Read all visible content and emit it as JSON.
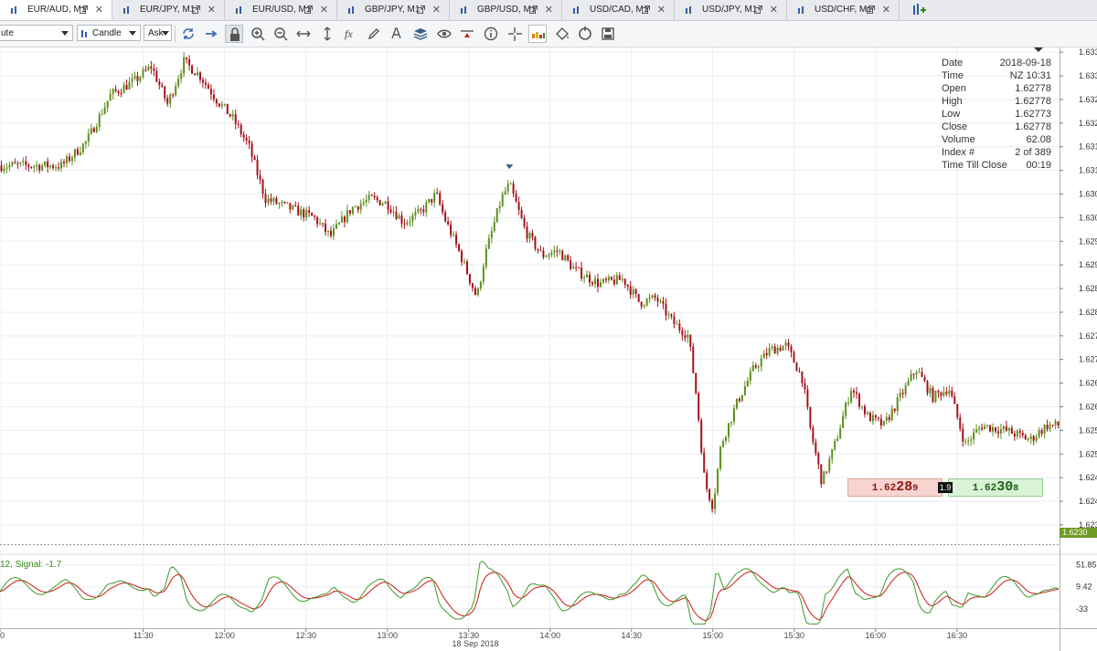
{
  "tabs": [
    {
      "label": "EUR/AUD, M1",
      "active": true
    },
    {
      "label": "EUR/JPY, M1",
      "active": false
    },
    {
      "label": "EUR/USD, M1",
      "active": false
    },
    {
      "label": "GBP/JPY, M1",
      "active": false
    },
    {
      "label": "GBP/USD, M1",
      "active": false
    },
    {
      "label": "USD/CAD, M1",
      "active": false
    },
    {
      "label": "USD/JPY, M1",
      "active": false
    },
    {
      "label": "USD/CHF, M1",
      "active": false
    }
  ],
  "toolbar": {
    "period_value": "ute",
    "chart_type_value": "Candle",
    "price_side_value": "Ask",
    "tools": [
      "refresh-icon",
      "arrow-right-icon",
      "lock-icon",
      "zoom-in-icon",
      "zoom-out-icon",
      "fit-horizontal-icon",
      "fit-vertical-icon",
      "function-icon",
      "pencil-icon",
      "text-icon",
      "layers-icon",
      "eye-icon",
      "alert-icon",
      "info-icon",
      "crosshair-icon",
      "heatmap-icon",
      "paint-bucket-icon",
      "reset-icon",
      "save-icon"
    ]
  },
  "infobox": [
    {
      "label": "Date",
      "value": "2018-09-18"
    },
    {
      "label": "Time",
      "value": "NZ 10:31"
    },
    {
      "label": "Open",
      "value": "1.62778"
    },
    {
      "label": "High",
      "value": "1.62778"
    },
    {
      "label": "Low",
      "value": "1.62773"
    },
    {
      "label": "Close",
      "value": "1.62778"
    },
    {
      "label": "Volume",
      "value": "62.08"
    },
    {
      "label": "Index #",
      "value": "2 of 389"
    },
    {
      "label": "Time Till Close",
      "value": "00:19"
    }
  ],
  "bid_ask": {
    "bid_prefix": "1.62",
    "bid_big": "28",
    "bid_pip": "9",
    "ask_prefix": "1.62",
    "ask_big": "30",
    "ask_pip": "8",
    "spread": "1.9"
  },
  "current_price_tag": "1.6230",
  "oscillator_label": "12, Signal: -1.7",
  "date_label": "18 Sep 2018",
  "colors": {
    "up": "#5d8f1c",
    "down": "#a3121a",
    "macd": "#3f9a2a",
    "signal": "#d01818",
    "grid": "#ebeef2"
  },
  "chart_data": {
    "type": "candlestick",
    "ylim": [
      1.6229,
      1.6336
    ],
    "y_ticks": [
      "1.6335",
      "1.6330",
      "1.6325",
      "1.6320",
      "1.6315",
      "1.6310",
      "1.6305",
      "1.6300",
      "1.6295",
      "1.6290",
      "1.6285",
      "1.6280",
      "1.6275",
      "1.6270",
      "1.6265",
      "1.6260",
      "1.6255",
      "1.6250",
      "1.6245",
      "1.6240",
      "1.6235"
    ],
    "y_tick_values": [
      1.6335,
      1.633,
      1.6325,
      1.632,
      1.6315,
      1.631,
      1.6305,
      1.63,
      1.6295,
      1.629,
      1.6285,
      1.628,
      1.6275,
      1.627,
      1.6265,
      1.626,
      1.6255,
      1.625,
      1.6245,
      1.624,
      1.6235
    ],
    "x_ticks": [
      "0",
      "11:30",
      "12:00",
      "12:30",
      "13:00",
      "13:30",
      "14:00",
      "14:30",
      "15:00",
      "15:30",
      "16:00",
      "16:30"
    ],
    "close_path": [
      [
        11.0,
        1.6311
      ],
      [
        11.15,
        1.6316
      ],
      [
        11.3,
        1.6326
      ],
      [
        11.45,
        1.6329
      ],
      [
        11.55,
        1.6332
      ],
      [
        11.65,
        1.6324
      ],
      [
        11.75,
        1.6333
      ],
      [
        11.85,
        1.633
      ],
      [
        11.95,
        1.6325
      ],
      [
        12.05,
        1.6321
      ],
      [
        12.15,
        1.6315
      ],
      [
        12.25,
        1.6304
      ],
      [
        12.4,
        1.6302
      ],
      [
        12.55,
        1.63
      ],
      [
        12.65,
        1.6296
      ],
      [
        12.78,
        1.6302
      ],
      [
        12.9,
        1.6304
      ],
      [
        13.0,
        1.6303
      ],
      [
        13.1,
        1.6299
      ],
      [
        13.2,
        1.6301
      ],
      [
        13.3,
        1.6305
      ],
      [
        13.35,
        1.63
      ],
      [
        13.45,
        1.6292
      ],
      [
        13.55,
        1.6283
      ],
      [
        13.6,
        1.6292
      ],
      [
        13.7,
        1.6304
      ],
      [
        13.75,
        1.6307
      ],
      [
        13.85,
        1.6297
      ],
      [
        13.95,
        1.6292
      ],
      [
        14.05,
        1.6293
      ],
      [
        14.15,
        1.6289
      ],
      [
        14.3,
        1.6286
      ],
      [
        14.45,
        1.6287
      ],
      [
        14.55,
        1.6282
      ],
      [
        14.65,
        1.6283
      ],
      [
        14.75,
        1.6278
      ],
      [
        14.85,
        1.6275
      ],
      [
        14.9,
        1.6262
      ],
      [
        14.95,
        1.6244
      ],
      [
        15.0,
        1.6239
      ],
      [
        15.05,
        1.6252
      ],
      [
        15.15,
        1.6261
      ],
      [
        15.25,
        1.6268
      ],
      [
        15.35,
        1.6272
      ],
      [
        15.45,
        1.6273
      ],
      [
        15.55,
        1.6266
      ],
      [
        15.6,
        1.6255
      ],
      [
        15.67,
        1.6244
      ],
      [
        15.75,
        1.6252
      ],
      [
        15.85,
        1.6264
      ],
      [
        15.95,
        1.6258
      ],
      [
        16.05,
        1.6256
      ],
      [
        16.15,
        1.6262
      ],
      [
        16.25,
        1.6268
      ],
      [
        16.35,
        1.6262
      ],
      [
        16.45,
        1.6264
      ],
      [
        16.55,
        1.6252
      ],
      [
        16.65,
        1.6256
      ],
      [
        16.8,
        1.6255
      ],
      [
        16.95,
        1.6253
      ],
      [
        17.05,
        1.6256
      ]
    ],
    "oscillator": {
      "ticks": [
        "51.85",
        "9.42",
        "-33"
      ],
      "tick_values": [
        51.85,
        9.42,
        -33
      ],
      "range": [
        -70,
        70
      ]
    },
    "current_price": 1.62308,
    "signal_marker_times": [
      13.75
    ]
  }
}
